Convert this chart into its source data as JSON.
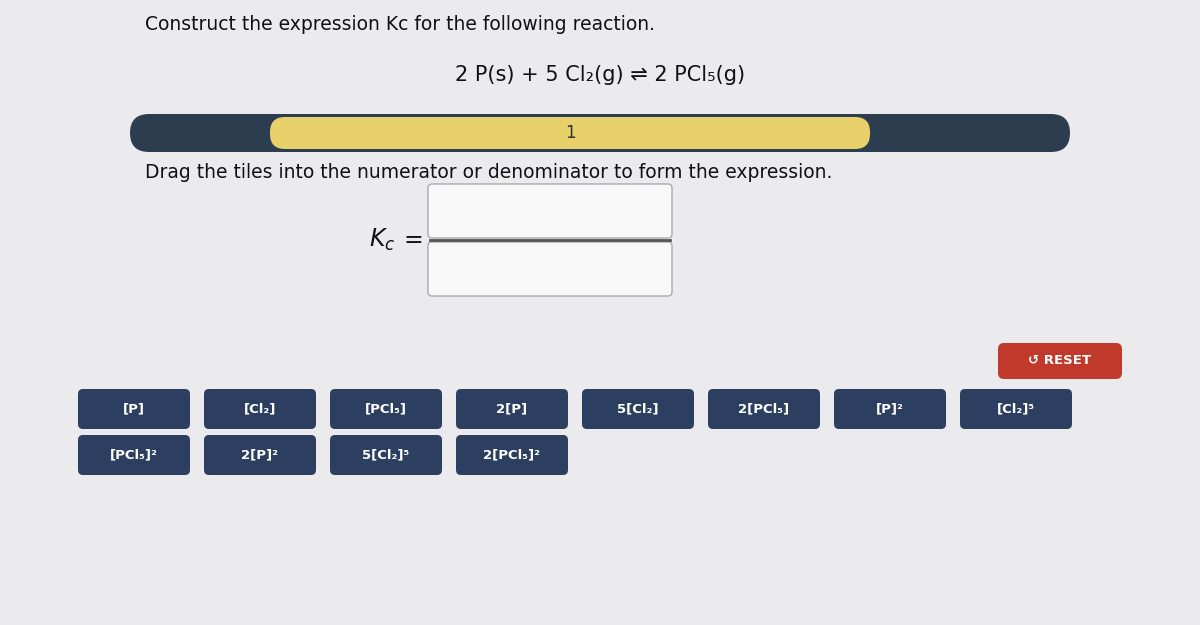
{
  "title": "Construct the expression Kc for the following reaction.",
  "reaction": "2 P(s) + 5 Cl₂(g) ⇌ 2 PCl₅(g)",
  "progress_label": "1",
  "drag_instruction": "Drag the tiles into the numerator or denominator to form the expression.",
  "bg_color": "#ebebee",
  "progress_bar_bg": "#2d3d50",
  "progress_bar_fill": "#e8d06a",
  "tile_bg": "#2d3f60",
  "tile_text_color": "#ffffff",
  "reset_bg": "#c0392b",
  "reset_text": "↺ RESET",
  "frac_box_fill": "#f8f8f8",
  "frac_box_edge": "#aaaaaa",
  "frac_line_color": "#555555",
  "text_color": "#111111",
  "row1_tiles": [
    "[P]",
    "[Cl₂]",
    "[PCl₅]",
    "2[P]",
    "5[Cl₂]",
    "2[PCl₅]",
    "[P]²",
    "[Cl₂]⁵"
  ],
  "row2_tiles": [
    "[PCl₅]²",
    "2[P]²",
    "5[Cl₂]⁵",
    "2[PCl₅]²"
  ],
  "title_fontsize": 13.5,
  "reaction_fontsize": 15,
  "instruction_fontsize": 13.5,
  "tile_fontsize": 9.5,
  "kc_fontsize": 17,
  "progress_fontsize": 12
}
